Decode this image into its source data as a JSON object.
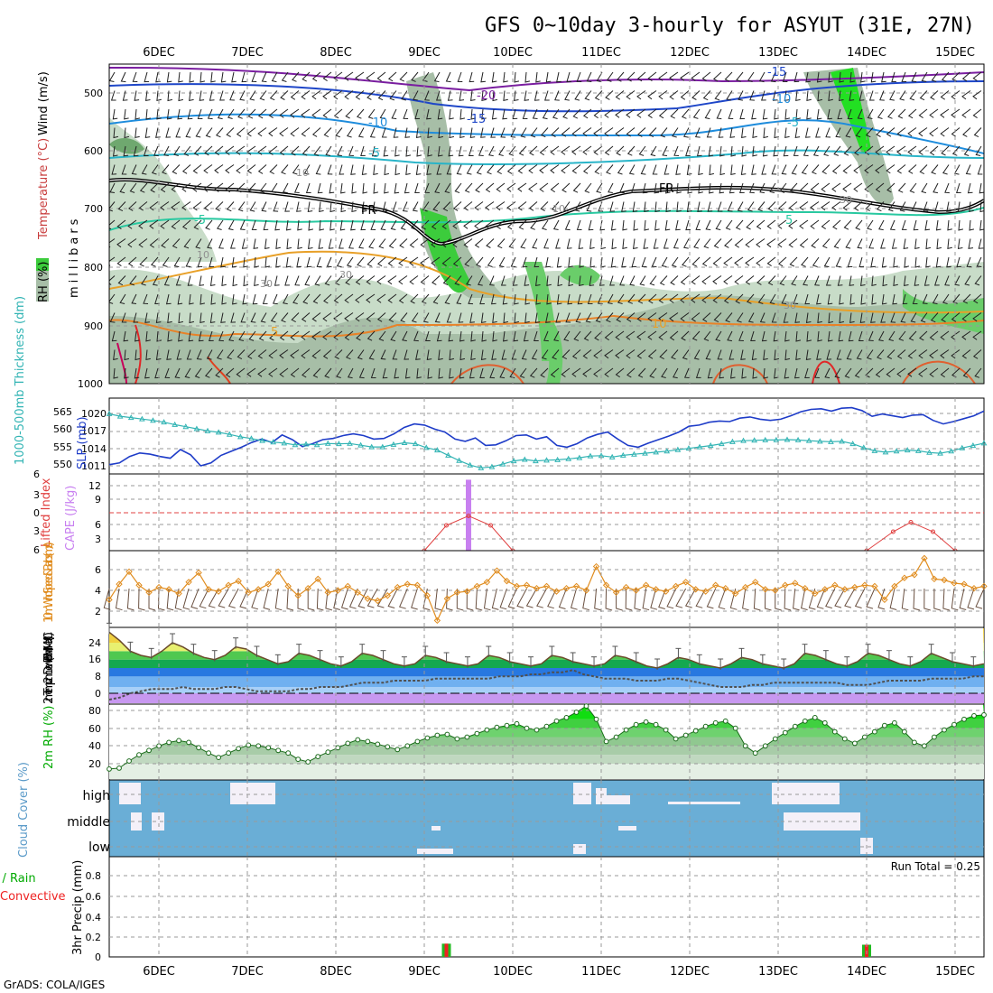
{
  "title": "GFS 0~10day 3-hourly for ASYUT (31E, 27N)",
  "footer": "GrADS: COLA/IGES",
  "date_labels": [
    "6DEC",
    "7DEC",
    "8DEC",
    "9DEC",
    "10DEC",
    "11DEC",
    "12DEC",
    "13DEC",
    "14DEC",
    "15DEC"
  ],
  "panels": {
    "upper_air": {
      "ylabel_parts": [
        "RH (%)",
        "Temperature (°C)",
        "Wind (m/s)"
      ],
      "yunit": "millibars",
      "yticks": [
        "500",
        "600",
        "700",
        "800",
        "900",
        "1000"
      ],
      "freezing_label": "FR",
      "temp_labels": [
        "-20",
        "-15",
        "-15",
        "-10",
        "-10",
        "-5",
        "-5",
        "-5",
        "5",
        "5",
        "10",
        "10",
        "30",
        "30",
        "30",
        "30",
        "10",
        "10"
      ]
    },
    "pressure": {
      "ylabel_left": "1000-500mb Thickness (dm)",
      "ylabel_right": "SLP (mb)",
      "thickness_ticks": [
        "565",
        "560",
        "555",
        "550"
      ],
      "slp_ticks": [
        "1020",
        "1017",
        "1014",
        "1011"
      ]
    },
    "instability": {
      "ylabel_left": "Lifted Index",
      "ylabel_right": "CAPE (J/kg)",
      "li_ticks": [
        "6",
        "3",
        "0",
        "3",
        "6"
      ],
      "cape_ticks": [
        "12",
        "9",
        "6",
        "3"
      ]
    },
    "wind10m": {
      "ylabel": "10m Wind Speed & Barbs (m/s)",
      "yticks": [
        "6",
        "4",
        "2"
      ]
    },
    "temp2m": {
      "ylabel": "2m Temp 2m DewPt (6hr Min/Max) (°C)",
      "yticks": [
        "24",
        "16",
        "8",
        "0"
      ]
    },
    "rh2m": {
      "ylabel": "2m RH (%)",
      "yticks": [
        "80",
        "60",
        "40",
        "20"
      ]
    },
    "cloud": {
      "ylabel": "Cloud Cover (%)",
      "levels": [
        "high",
        "middle",
        "low"
      ]
    },
    "precip": {
      "ylabel": "3hr Precip (mm)",
      "legend_left": "Total / Rain",
      "legend_right": "Convective",
      "run_total": "Run Total = 0.25",
      "yticks": [
        "0.8",
        "0.6",
        "0.4",
        "0.2",
        "0"
      ]
    }
  },
  "chart_data": [
    {
      "type": "line",
      "title": "1000-500mb Thickness (dm) / SLP (mb)",
      "x_unit": "3-hourly from 5DEC 12Z",
      "series": [
        {
          "name": "SLP (mb)",
          "color": "#1e3cc8",
          "values": [
            1011.2,
            1011.5,
            1012.6,
            1013.2,
            1013.0,
            1012.6,
            1012.3,
            1013.8,
            1012.9,
            1011.0,
            1011.5,
            1012.8,
            1013.5,
            1014.2,
            1015.0,
            1015.6,
            1015.0,
            1016.3,
            1015.5,
            1014.3,
            1014.8,
            1015.5,
            1015.7,
            1016.2,
            1016.5,
            1016.2,
            1015.6,
            1015.7,
            1016.5,
            1017.6,
            1018.2,
            1018.0,
            1017.3,
            1016.8,
            1015.6,
            1015.2,
            1015.8,
            1014.5,
            1014.6,
            1015.3,
            1016.2,
            1016.3,
            1015.6,
            1016.0,
            1014.5,
            1014.2,
            1014.8,
            1015.8,
            1016.4,
            1016.8,
            1015.6,
            1014.5,
            1014.2,
            1014.9,
            1015.5,
            1016.1,
            1016.8,
            1017.8,
            1018.0,
            1018.5,
            1018.7,
            1018.6,
            1019.2,
            1019.4,
            1019.0,
            1018.8,
            1019.0,
            1019.6,
            1020.3,
            1020.7,
            1020.8,
            1020.4,
            1020.9,
            1021.0,
            1020.5,
            1019.5,
            1019.9,
            1019.6,
            1019.3,
            1019.7,
            1019.8,
            1018.8,
            1018.2,
            1018.6,
            1019.1,
            1019.6,
            1020.4
          ]
        },
        {
          "name": "1000-500mb Thickness (dm)",
          "color": "#32b4b4",
          "values": [
            564.9,
            564.2,
            563.8,
            563.4,
            563.0,
            562.5,
            561.8,
            561.2,
            560.6,
            560.0,
            559.6,
            559.0,
            558.3,
            557.8,
            557.2,
            556.8,
            556.5,
            556.0,
            556.2,
            556.0,
            556.4,
            556.3,
            556.4,
            555.9,
            555.4,
            555.4,
            556.1,
            556.6,
            556.3,
            555.2,
            554.5,
            553.0,
            551.5,
            550.2,
            549.4,
            549.7,
            550.5,
            551.4,
            551.8,
            551.4,
            551.6,
            551.7,
            552.0,
            552.3,
            552.8,
            552.9,
            552.5,
            553.0,
            553.3,
            553.6,
            553.9,
            554.2,
            554.6,
            555.0,
            555.4,
            555.8,
            556.3,
            556.9,
            557.2,
            557.3,
            557.4,
            557.4,
            557.5,
            557.4,
            557.2,
            557.0,
            556.9,
            557.0,
            556.3,
            555.2,
            554.3,
            553.9,
            554.2,
            554.5,
            554.3,
            553.8,
            553.6,
            554.2,
            555.1,
            555.8,
            556.5
          ]
        }
      ]
    },
    {
      "type": "line",
      "title": "Lifted Index / CAPE (J/kg)",
      "series": [
        {
          "name": "CAPE (J/kg)",
          "color": "#c880f0",
          "x": [
            9.5
          ],
          "values": [
            13
          ]
        },
        {
          "name": "Lifted Index",
          "color": "#e04040",
          "x": [
            9.0,
            9.25,
            9.5,
            9.75,
            10.0
          ],
          "values": [
            6,
            2,
            0.5,
            2,
            6
          ]
        },
        {
          "name": "Lifted Index",
          "color": "#e04040",
          "x": [
            14.0,
            14.3,
            14.5,
            14.75,
            15.0
          ],
          "values": [
            6,
            3,
            1.5,
            3,
            6
          ]
        }
      ]
    },
    {
      "type": "line",
      "title": "10m Wind Speed (m/s)",
      "series": [
        {
          "name": "10m Wind Speed",
          "color": "#e08c1e",
          "values": [
            3.1,
            4.6,
            5.8,
            4.5,
            3.8,
            4.3,
            4.1,
            3.7,
            4.8,
            5.7,
            4.1,
            3.9,
            4.5,
            4.9,
            3.8,
            4.1,
            4.6,
            5.8,
            4.4,
            3.5,
            4.2,
            5.1,
            3.8,
            4.0,
            4.4,
            3.8,
            3.2,
            3.0,
            3.5,
            4.3,
            4.6,
            4.5,
            3.5,
            1.1,
            3.2,
            3.8,
            3.9,
            4.4,
            4.8,
            5.9,
            4.9,
            4.4,
            4.5,
            4.2,
            4.4,
            3.9,
            4.2,
            4.4,
            4.0,
            6.3,
            4.5,
            3.8,
            4.3,
            4.0,
            4.5,
            4.1,
            3.9,
            4.4,
            4.8,
            4.1,
            3.9,
            4.5,
            4.2,
            3.7,
            4.3,
            4.8,
            4.1,
            4.0,
            4.5,
            4.7,
            4.2,
            3.7,
            4.1,
            4.5,
            4.1,
            4.3,
            4.5,
            4.4,
            3.1,
            4.4,
            5.2,
            5.5,
            7.1,
            5.1,
            5.0,
            4.7,
            4.6,
            4.2,
            4.4
          ]
        }
      ]
    },
    {
      "type": "line",
      "title": "2m Temp / DewPt (°C)",
      "series": [
        {
          "name": "2m Temp",
          "color": "#6a4a2a",
          "values": [
            29,
            25,
            20,
            18,
            17,
            20,
            24,
            22,
            19,
            17,
            16,
            18,
            22,
            21,
            18,
            16,
            14,
            15,
            19,
            18,
            16,
            14,
            13,
            15,
            19,
            18,
            16,
            14,
            13,
            14,
            18,
            17,
            15,
            14,
            13,
            14,
            18,
            17,
            15,
            14,
            13,
            14,
            18,
            17,
            15,
            14,
            13,
            14,
            18,
            17,
            15,
            13,
            12,
            14,
            17,
            16,
            14,
            13,
            12,
            14,
            17,
            16,
            14,
            13,
            12,
            14,
            19,
            18,
            16,
            14,
            13,
            15,
            19,
            18,
            16,
            14,
            13,
            15,
            19,
            17,
            15,
            14,
            13,
            14
          ]
        },
        {
          "name": "2m DewPt",
          "color": "#505050",
          "values": [
            -3,
            -2,
            0,
            1,
            2,
            2,
            2,
            3,
            2,
            2,
            2,
            3,
            3,
            2,
            1,
            1,
            1,
            1,
            2,
            2,
            3,
            3,
            3,
            4,
            5,
            5,
            5,
            6,
            6,
            6,
            6,
            7,
            7,
            7,
            7,
            7,
            7,
            8,
            8,
            8,
            9,
            9,
            10,
            10,
            11,
            9,
            8,
            7,
            7,
            7,
            6,
            6,
            6,
            7,
            7,
            6,
            5,
            4,
            3,
            3,
            3,
            4,
            4,
            5,
            5,
            5,
            5,
            5,
            5,
            5,
            4,
            4,
            4,
            5,
            6,
            6,
            6,
            6,
            7,
            7,
            7,
            7,
            8,
            8
          ]
        }
      ]
    },
    {
      "type": "area",
      "title": "2m RH (%)",
      "series": [
        {
          "name": "2m RH",
          "color": "#00cc00",
          "values": [
            14,
            15,
            23,
            30,
            35,
            40,
            44,
            46,
            44,
            38,
            32,
            27,
            32,
            37,
            41,
            40,
            38,
            35,
            32,
            25,
            22,
            28,
            33,
            38,
            43,
            47,
            45,
            42,
            39,
            36,
            40,
            45,
            49,
            52,
            53,
            48,
            50,
            54,
            58,
            61,
            63,
            65,
            60,
            58,
            62,
            68,
            72,
            78,
            85,
            70,
            45,
            50,
            58,
            64,
            67,
            64,
            58,
            48,
            52,
            57,
            62,
            66,
            68,
            60,
            40,
            32,
            40,
            48,
            55,
            62,
            68,
            72,
            66,
            56,
            48,
            43,
            50,
            56,
            63,
            66,
            56,
            44,
            40,
            50,
            58,
            64,
            70,
            74,
            75
          ]
        }
      ]
    },
    {
      "type": "bar",
      "title": "3hr Precip (mm)",
      "categories": [
        "9DEC 06Z",
        "14DEC 00Z"
      ],
      "series": [
        {
          "name": "Total / Rain",
          "color": "#22bb22",
          "values": [
            0.13,
            0.12
          ]
        },
        {
          "name": "Convective",
          "color": "#ee2222",
          "values": [
            0.13,
            0.12
          ]
        }
      ]
    }
  ]
}
